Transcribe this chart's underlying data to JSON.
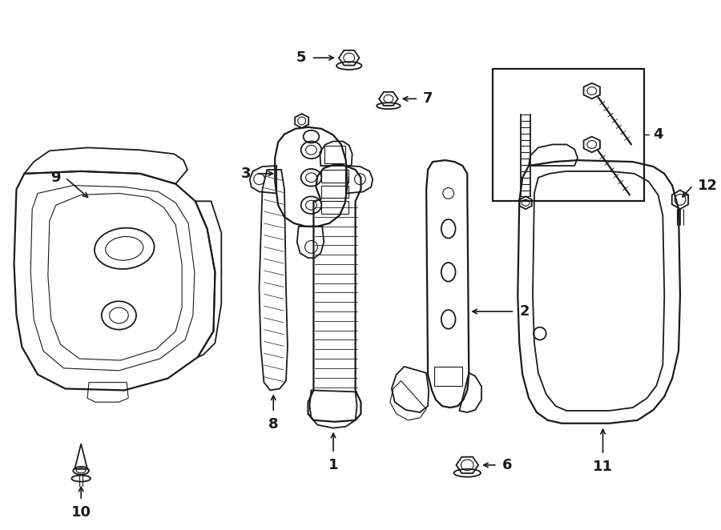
{
  "bg_color": "#ffffff",
  "line_color": "#1a1a1a",
  "fig_width": 9.0,
  "fig_height": 6.62,
  "lw_main": 1.3,
  "lw_thin": 0.8,
  "lw_thick": 1.6
}
